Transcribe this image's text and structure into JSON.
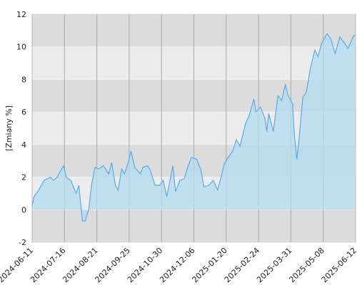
{
  "chart_data": {
    "type": "area",
    "y_label": "[Zmiany %]",
    "x": [
      "2024-06-11",
      "2024-06-13",
      "2024-06-18",
      "2024-06-24",
      "2024-07-01",
      "2024-07-04",
      "2024-07-08",
      "2024-07-15",
      "2024-07-18",
      "2024-07-23",
      "2024-07-29",
      "2024-08-01",
      "2024-08-05",
      "2024-08-08",
      "2024-08-12",
      "2024-08-15",
      "2024-08-19",
      "2024-08-23",
      "2024-08-28",
      "2024-09-03",
      "2024-09-06",
      "2024-09-10",
      "2024-09-13",
      "2024-09-17",
      "2024-09-20",
      "2024-09-24",
      "2024-09-27",
      "2024-10-01",
      "2024-10-07",
      "2024-10-10",
      "2024-10-15",
      "2024-10-18",
      "2024-10-23",
      "2024-10-28",
      "2024-11-01",
      "2024-11-05",
      "2024-11-08",
      "2024-11-12",
      "2024-11-15",
      "2024-11-20",
      "2024-11-25",
      "2024-11-29",
      "2024-12-03",
      "2024-12-10",
      "2024-12-16",
      "2024-12-20",
      "2024-12-27",
      "2025-01-02",
      "2025-01-08",
      "2025-01-14",
      "2025-01-17",
      "2025-01-22",
      "2025-01-27",
      "2025-01-31",
      "2025-02-04",
      "2025-02-10",
      "2025-02-14",
      "2025-02-19",
      "2025-02-21",
      "2025-02-26",
      "2025-03-03",
      "2025-03-05",
      "2025-03-07",
      "2025-03-12",
      "2025-03-17",
      "2025-03-21",
      "2025-03-25",
      "2025-03-28",
      "2025-04-02",
      "2025-04-04",
      "2025-04-07",
      "2025-04-09",
      "2025-04-14",
      "2025-04-18",
      "2025-04-23",
      "2025-04-28",
      "2025-05-02",
      "2025-05-06",
      "2025-05-12",
      "2025-05-16",
      "2025-05-21",
      "2025-05-26",
      "2025-05-30",
      "2025-06-04",
      "2025-06-10",
      "2025-06-12"
    ],
    "series": [
      {
        "color": "#5aaae8",
        "fill": "#b3dcf0",
        "values": [
          0.2,
          0.8,
          1.2,
          1.8,
          2.0,
          1.8,
          2.0,
          2.7,
          2.0,
          1.8,
          1.0,
          1.5,
          -0.7,
          -0.7,
          0.0,
          1.5,
          2.6,
          2.5,
          2.7,
          2.2,
          2.9,
          1.5,
          1.2,
          2.5,
          2.2,
          2.9,
          3.6,
          2.6,
          2.2,
          2.6,
          2.7,
          2.4,
          1.5,
          1.5,
          1.8,
          0.8,
          1.6,
          2.7,
          1.1,
          1.8,
          1.9,
          2.6,
          3.2,
          3.1,
          2.4,
          1.4,
          1.5,
          1.8,
          1.2,
          2.2,
          2.8,
          3.2,
          3.6,
          4.3,
          3.9,
          5.3,
          5.8,
          6.8,
          6.0,
          6.3,
          5.6,
          4.8,
          5.9,
          4.8,
          7.0,
          6.7,
          7.7,
          7.0,
          6.5,
          4.6,
          3.1,
          4.0,
          6.9,
          7.2,
          8.7,
          9.8,
          9.4,
          10.2,
          10.8,
          10.5,
          9.6,
          10.6,
          10.3,
          9.9,
          10.7,
          10.7
        ]
      }
    ],
    "xticks": [
      "2024-06-11",
      "2024-07-16",
      "2024-08-21",
      "2024-09-25",
      "2024-10-30",
      "2024-12-06",
      "2025-01-20",
      "2025-02-24",
      "2025-03-31",
      "2025-05-08",
      "2025-06-12"
    ],
    "ylim": [
      -2,
      12
    ],
    "yticks": [
      -2,
      0,
      2,
      4,
      6,
      8,
      10,
      12
    ],
    "grid": true,
    "band_colors": [
      "#ececec",
      "#dcdcdc"
    ]
  }
}
